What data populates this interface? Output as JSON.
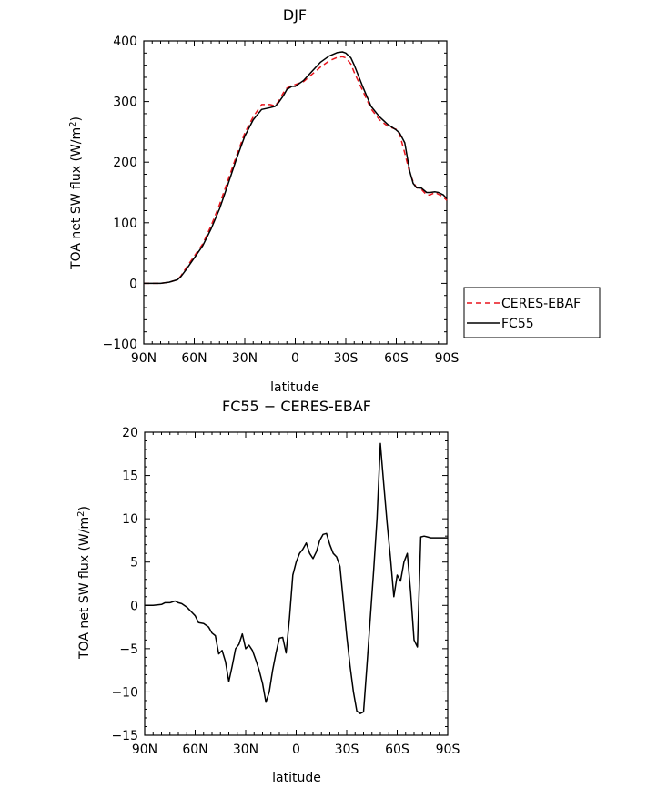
{
  "chart_data": [
    {
      "type": "line",
      "title": "DJF",
      "xlabel": "latitude",
      "ylabel_main": "TOA net SW flux (W/m",
      "ylabel_sup": "2",
      "ylabel_tail": ")",
      "xlim": [
        90,
        -90
      ],
      "ylim": [
        -100,
        400
      ],
      "xticks": [
        90,
        60,
        30,
        0,
        -30,
        -60,
        -90
      ],
      "xticklabels": [
        "90N",
        "60N",
        "30N",
        "0",
        "30S",
        "60S",
        "90S"
      ],
      "yticks": [
        -100,
        0,
        100,
        200,
        300,
        400
      ],
      "yticklabels": [
        "−100",
        "0",
        "100",
        "200",
        "300",
        "400"
      ],
      "legend_position": "right-outside",
      "series": [
        {
          "name": "CERES-EBAF",
          "color": "#e8141c",
          "style": "dashed",
          "x": [
            90,
            85,
            80,
            75,
            70,
            68,
            65,
            60,
            55,
            50,
            45,
            40,
            35,
            30,
            25,
            20,
            15,
            12,
            10,
            7,
            5,
            2,
            0,
            -5,
            -10,
            -15,
            -20,
            -25,
            -28,
            -30,
            -33,
            -35,
            -40,
            -45,
            -50,
            -55,
            -60,
            -62,
            -65,
            -68,
            -70,
            -72,
            -75,
            -78,
            -80,
            -83,
            -85,
            -88,
            -90
          ],
          "y": [
            0,
            0,
            0,
            2,
            6,
            12,
            25,
            45,
            65,
            95,
            130,
            170,
            210,
            248,
            275,
            295,
            295,
            293,
            300,
            315,
            322,
            327,
            328,
            333,
            345,
            357,
            367,
            373,
            374,
            372,
            362,
            348,
            318,
            288,
            270,
            259,
            254,
            246,
            215,
            182,
            168,
            158,
            155,
            146,
            146,
            150,
            147,
            143,
            137
          ]
        },
        {
          "name": "FC55",
          "color": "#000000",
          "style": "solid",
          "x": [
            90,
            85,
            80,
            75,
            70,
            68,
            65,
            60,
            55,
            50,
            45,
            40,
            35,
            30,
            25,
            20,
            15,
            12,
            10,
            7,
            5,
            2,
            0,
            -5,
            -10,
            -15,
            -20,
            -25,
            -28,
            -30,
            -33,
            -35,
            -40,
            -45,
            -50,
            -55,
            -60,
            -62,
            -65,
            -68,
            -70,
            -72,
            -75,
            -78,
            -80,
            -83,
            -85,
            -88,
            -90
          ],
          "y": [
            0,
            0,
            0,
            2,
            6,
            11,
            22,
            42,
            62,
            90,
            123,
            163,
            205,
            243,
            270,
            287,
            290,
            292,
            298,
            310,
            320,
            325,
            325,
            335,
            350,
            365,
            375,
            381,
            382,
            380,
            372,
            360,
            325,
            292,
            275,
            262,
            253,
            248,
            232,
            185,
            165,
            158,
            157,
            150,
            150,
            151,
            150,
            146,
            140
          ]
        }
      ]
    },
    {
      "type": "line",
      "title": "FC55 − CERES-EBAF",
      "xlabel": "latitude",
      "ylabel_main": "TOA net SW flux (W/m",
      "ylabel_sup": "2",
      "ylabel_tail": ")",
      "xlim": [
        90,
        -90
      ],
      "ylim": [
        -15,
        20
      ],
      "xticks": [
        90,
        60,
        30,
        0,
        -30,
        -60,
        -90
      ],
      "xticklabels": [
        "90N",
        "60N",
        "30N",
        "0",
        "30S",
        "60S",
        "90S"
      ],
      "yticks": [
        -15,
        -10,
        -5,
        0,
        5,
        10,
        15,
        20
      ],
      "yticklabels": [
        "−15",
        "−10",
        "−5",
        "0",
        "5",
        "10",
        "15",
        "20"
      ],
      "series": [
        {
          "color": "#000000",
          "style": "solid",
          "x": [
            90,
            85,
            80,
            78,
            75,
            72,
            70,
            68,
            65,
            62,
            60,
            58,
            55,
            52,
            50,
            48,
            46,
            44,
            42,
            40,
            38,
            36,
            34,
            32,
            30,
            28,
            26,
            24,
            22,
            20,
            18,
            16,
            14,
            12,
            10,
            8,
            6,
            4,
            2,
            0,
            -2,
            -4,
            -6,
            -8,
            -10,
            -12,
            -14,
            -16,
            -18,
            -20,
            -22,
            -24,
            -26,
            -28,
            -30,
            -32,
            -34,
            -36,
            -38,
            -40,
            -42,
            -44,
            -46,
            -48,
            -50,
            -52,
            -54,
            -56,
            -58,
            -60,
            -62,
            -64,
            -66,
            -68,
            -70,
            -72,
            -74,
            -76,
            -78,
            -80,
            -82,
            -84,
            -86,
            -88,
            -90
          ],
          "y": [
            0,
            0,
            0.1,
            0.3,
            0.3,
            0.5,
            0.3,
            0.2,
            -0.2,
            -0.8,
            -1.2,
            -2.0,
            -2.1,
            -2.5,
            -3.2,
            -3.5,
            -5.6,
            -5.2,
            -6.5,
            -8.8,
            -7.0,
            -5.0,
            -4.5,
            -3.3,
            -5.0,
            -4.6,
            -5.2,
            -6.3,
            -7.5,
            -9.0,
            -11.2,
            -10.0,
            -7.5,
            -5.5,
            -3.8,
            -3.7,
            -5.5,
            -1.5,
            3.5,
            5.0,
            6.0,
            6.5,
            7.2,
            6.0,
            5.4,
            6.2,
            7.5,
            8.2,
            8.3,
            7.0,
            6.0,
            5.6,
            4.5,
            0.5,
            -3.5,
            -7.0,
            -10.0,
            -12.2,
            -12.5,
            -12.3,
            -7.0,
            -1.5,
            4.0,
            10.0,
            18.7,
            14.0,
            9.5,
            5.5,
            1.0,
            3.5,
            2.8,
            5.0,
            6.0,
            1.5,
            -4.0,
            -4.8,
            7.9,
            8.0,
            7.9,
            7.8,
            7.8,
            7.8,
            7.8,
            7.8,
            7.8
          ]
        }
      ]
    }
  ]
}
